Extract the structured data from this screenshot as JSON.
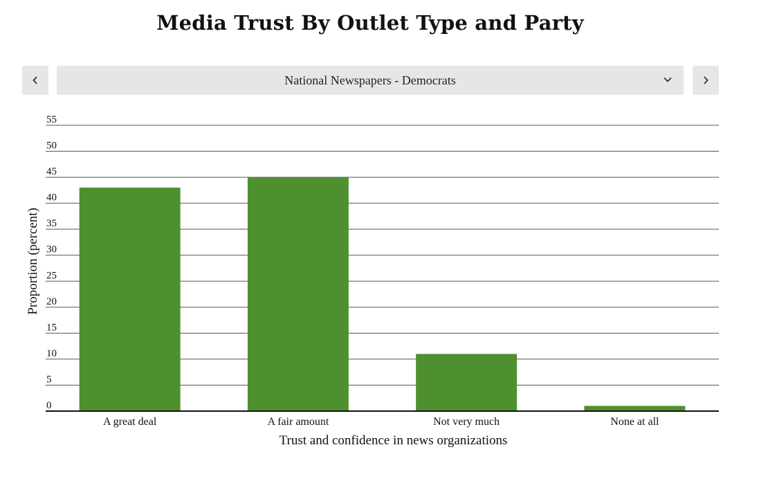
{
  "title": "Media Trust By Outlet Type and Party",
  "selector": {
    "selected": "National Newspapers - Democrats",
    "prev_icon": "chevron-left-icon",
    "next_icon": "chevron-right-icon",
    "dropdown_icon": "chevron-down-icon"
  },
  "colors": {
    "bar": "#4e8f2f",
    "grid": "#555555",
    "axis": "#111111",
    "control_bg": "#e6e6e6"
  },
  "chart_data": {
    "type": "bar",
    "categories": [
      "A great deal",
      "A fair amount",
      "Not very much",
      "None at all"
    ],
    "values": [
      43,
      45,
      11,
      1
    ],
    "title": "Media Trust By Outlet Type and Party",
    "xlabel": "Trust and confidence in news organizations",
    "ylabel": "Proportion (percent)",
    "ylim": [
      0,
      55
    ],
    "yticks": [
      0,
      5,
      10,
      15,
      20,
      25,
      30,
      35,
      40,
      45,
      50,
      55
    ],
    "grid": true
  }
}
